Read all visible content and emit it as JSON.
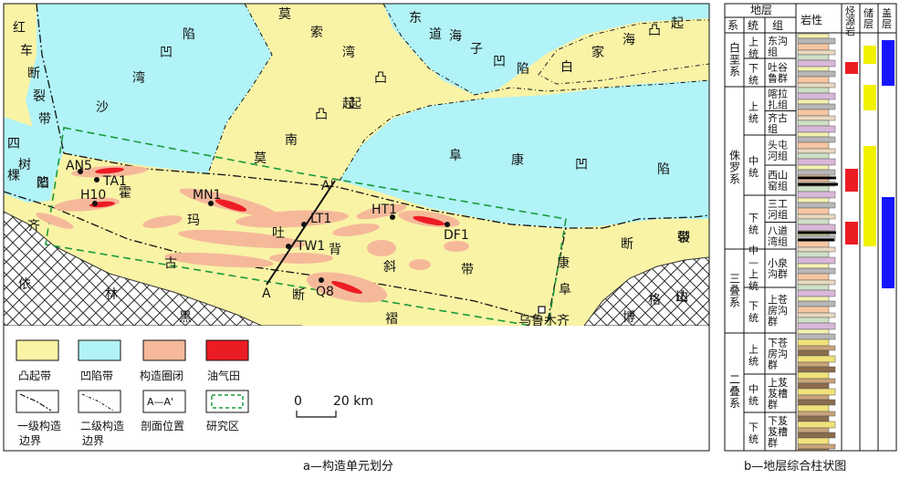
{
  "captions": {
    "left": "a—构造单元划分",
    "right": "b—地层综合柱状图"
  },
  "map": {
    "region_labels": [
      {
        "id": "honghe",
        "text": "红车断裂带"
      },
      {
        "id": "shawan",
        "text": "沙湾凹陷"
      },
      {
        "id": "mosuowan",
        "text": "莫索湾凸起"
      },
      {
        "id": "dongdaohaizi",
        "text": "东道海子凹陷"
      },
      {
        "id": "baijiahai",
        "text": "白家海凸起"
      },
      {
        "id": "mona",
        "text": "莫南凸起"
      },
      {
        "id": "fukang_aox",
        "text": "阜康凹陷"
      },
      {
        "id": "sikeshu",
        "text": "四棵树凹陷"
      },
      {
        "id": "qiguhe",
        "text": "霍玛吐背斜带"
      },
      {
        "id": "qigu",
        "text": "齐古断褶带"
      },
      {
        "id": "fukang_fault",
        "text": "阜康断裂带"
      },
      {
        "id": "yilin",
        "text": "依林黑比尔根山"
      },
      {
        "id": "bogda",
        "text": "博格达山"
      }
    ],
    "wells": [
      "AN5",
      "TA1",
      "H10",
      "MN1",
      "LT1",
      "TW1",
      "HT1",
      "DF1",
      "Q8"
    ],
    "section_ends": {
      "a": "A",
      "a_prime": "A'"
    },
    "city": "乌鲁木齐",
    "scale": {
      "zero": "0",
      "value": "20 km"
    },
    "legend": [
      {
        "name": "凸起带",
        "color": "#f9f3a6"
      },
      {
        "name": "凹陷带",
        "color": "#b1f3f7"
      },
      {
        "name": "构造圈闭",
        "color": "#f5b99a"
      },
      {
        "name": "油气田",
        "color": "#ec1c24"
      },
      {
        "name": "一级构造边界"
      },
      {
        "name": "二级构造边界"
      },
      {
        "name": "剖面位置",
        "sample": "A—A'"
      },
      {
        "name": "研究区"
      }
    ]
  },
  "column": {
    "headers": {
      "strata": "地层",
      "xi": "系",
      "tong": "统",
      "zu": "组",
      "lith": "岩性",
      "source": "烃源岩",
      "reservoir": "储层",
      "seal": "盖层"
    },
    "systems": [
      {
        "name": "白垩系",
        "series": [
          {
            "name": "上统",
            "formations": [
              {
                "name": "东沟组"
              }
            ]
          },
          {
            "name": "下统",
            "formations": [
              {
                "name": "吐谷鲁群"
              }
            ]
          }
        ]
      },
      {
        "name": "侏罗系",
        "series": [
          {
            "name": "上统",
            "formations": [
              {
                "name": "喀拉扎组"
              },
              {
                "name": "齐古组"
              }
            ]
          },
          {
            "name": "中统",
            "formations": [
              {
                "name": "头屯河组"
              },
              {
                "name": "西山窑组"
              }
            ]
          },
          {
            "name": "下统",
            "formations": [
              {
                "name": "三工河组"
              },
              {
                "name": "八道湾组"
              }
            ]
          }
        ]
      },
      {
        "name": "三叠系",
        "series": [
          {
            "name": "中—上统",
            "formations": [
              {
                "name": "小泉沟群"
              }
            ]
          },
          {
            "name": "下统",
            "formations": [
              {
                "name": "上苍房沟群"
              }
            ]
          }
        ]
      },
      {
        "name": "二叠系",
        "series": [
          {
            "name": "上统",
            "formations": [
              {
                "name": "下苍房沟群"
              }
            ]
          },
          {
            "name": "中统",
            "formations": [
              {
                "name": "上芨芨槽群"
              }
            ]
          },
          {
            "name": "下统",
            "formations": [
              {
                "name": "下芨芨槽群"
              }
            ]
          }
        ]
      }
    ],
    "colors": {
      "source": "#ec1c24",
      "reservoir": "#f2f200",
      "seal": "#1414ff"
    }
  }
}
